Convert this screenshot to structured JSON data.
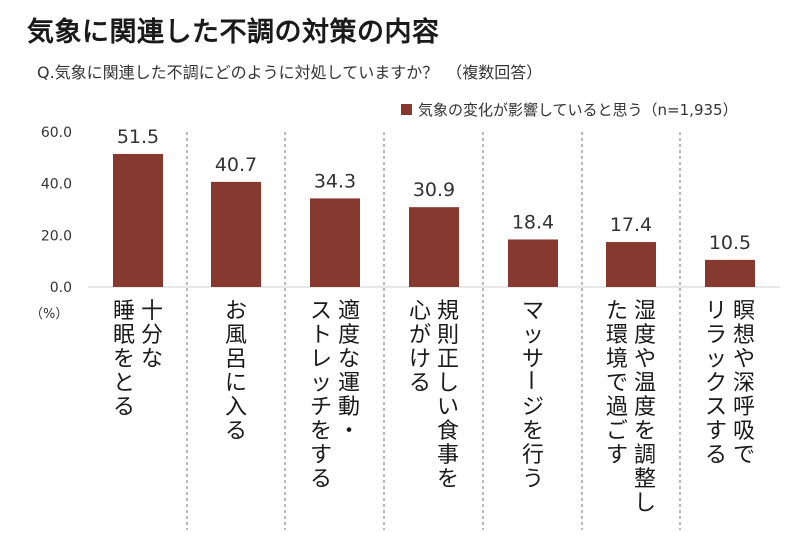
{
  "title": "気象に関連した不調の対策の内容",
  "subtitle": "Q.気象に関連した不調にどのように対処していますか？　（複数回答）",
  "colors": {
    "bar": "#86392e",
    "separator": "#8c8c8c"
  },
  "chart_data": {
    "type": "bar",
    "title": "気象に関連した不調の対策の内容",
    "subtitle": "Q.気象に関連した不調にどのように対処していますか？　（複数回答）",
    "categories": [
      [
        "十分な",
        "睡眠をとる"
      ],
      [
        "お風呂に入る"
      ],
      [
        "適度な運動・",
        "ストレッチをする"
      ],
      [
        "規則正しい食事を",
        "心がける"
      ],
      [
        "マッサージを行う"
      ],
      [
        "湿度や温度を調整し",
        "た環境で過ごす"
      ],
      [
        "瞑想や深呼吸で",
        "リラックスする"
      ]
    ],
    "series": [
      {
        "name": "気象の変化が影響していると思う（n=1,935）",
        "values": [
          51.5,
          40.7,
          34.3,
          30.9,
          18.4,
          17.4,
          10.5
        ]
      }
    ],
    "value_labels": [
      "51.5",
      "40.7",
      "34.3",
      "30.9",
      "18.4",
      "17.4",
      "10.5"
    ],
    "yticks": [
      "0.0",
      "20.0",
      "40.0",
      "60.0"
    ],
    "ylim": [
      0,
      60
    ],
    "ylabel": "（%）",
    "legend_position": "top-right",
    "grid": false
  }
}
